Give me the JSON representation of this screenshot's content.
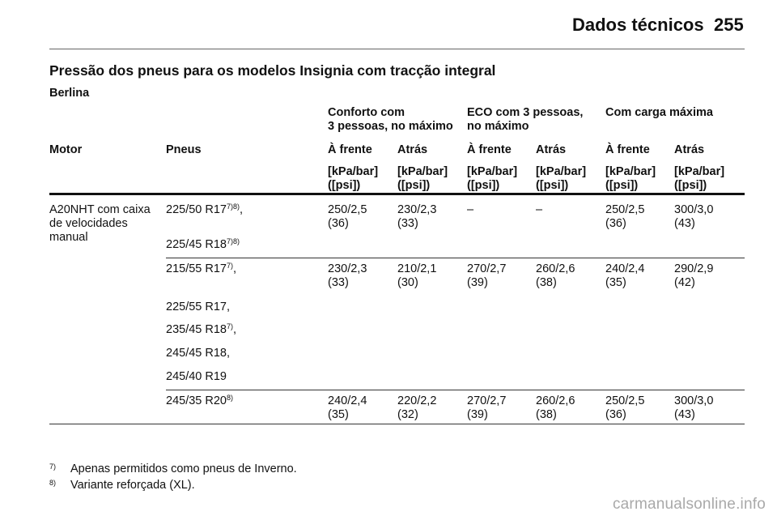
{
  "header": {
    "title": "Dados técnicos",
    "page_number": "255"
  },
  "section_title": "Pressão dos pneus para os modelos Insignia com tracção integral",
  "subsection": "Berlina",
  "table": {
    "groups": [
      {
        "line1": "Conforto com",
        "line2": "3 pessoas, no máximo"
      },
      {
        "line1": "ECO com 3 pessoas,",
        "line2": "no máximo"
      },
      {
        "line1": "Com carga máxima",
        "line2": ""
      }
    ],
    "columns": [
      "Motor",
      "Pneus",
      "À frente",
      "Atrás",
      "À frente",
      "Atrás",
      "À frente",
      "Atrás"
    ],
    "unit_line1": "[kPa/bar]",
    "unit_line2": "([psi])",
    "motor": [
      "A20NHT com caixa",
      "de velocidades",
      "manual"
    ],
    "row_groups": [
      {
        "tyres": [
          {
            "text": "225/50 R17",
            "sup": "7)8)",
            "suffix": ","
          },
          {
            "text": "225/45 R18",
            "sup": "7)8)",
            "suffix": ""
          }
        ],
        "values": [
          [
            "250/2,5",
            "(36)"
          ],
          [
            "230/2,3",
            "(33)"
          ],
          [
            "–",
            ""
          ],
          [
            "–",
            ""
          ],
          [
            "250/2,5",
            "(36)"
          ],
          [
            "300/3,0",
            "(43)"
          ]
        ]
      },
      {
        "tyres": [
          {
            "text": "215/55 R17",
            "sup": "7)",
            "suffix": ","
          },
          {
            "text": "225/55 R17,",
            "sup": "",
            "suffix": ""
          },
          {
            "text": "235/45 R18",
            "sup": "7)",
            "suffix": ","
          },
          {
            "text": "245/45 R18,",
            "sup": "",
            "suffix": ""
          },
          {
            "text": "245/40 R19",
            "sup": "",
            "suffix": ""
          }
        ],
        "values": [
          [
            "230/2,3",
            "(33)"
          ],
          [
            "210/2,1",
            "(30)"
          ],
          [
            "270/2,7",
            "(39)"
          ],
          [
            "260/2,6",
            "(38)"
          ],
          [
            "240/2,4",
            "(35)"
          ],
          [
            "290/2,9",
            "(42)"
          ]
        ]
      },
      {
        "tyres": [
          {
            "text": "245/35 R20",
            "sup": "8)",
            "suffix": ""
          }
        ],
        "values": [
          [
            "240/2,4",
            "(35)"
          ],
          [
            "220/2,2",
            "(32)"
          ],
          [
            "270/2,7",
            "(39)"
          ],
          [
            "260/2,6",
            "(38)"
          ],
          [
            "250/2,5",
            "(36)"
          ],
          [
            "300/3,0",
            "(43)"
          ]
        ]
      }
    ]
  },
  "footnotes": [
    {
      "mark": "7)",
      "text": "Apenas permitidos como pneus de Inverno."
    },
    {
      "mark": "8)",
      "text": "Variante reforçada (XL)."
    }
  ],
  "watermark": "carmanualsonline.info"
}
